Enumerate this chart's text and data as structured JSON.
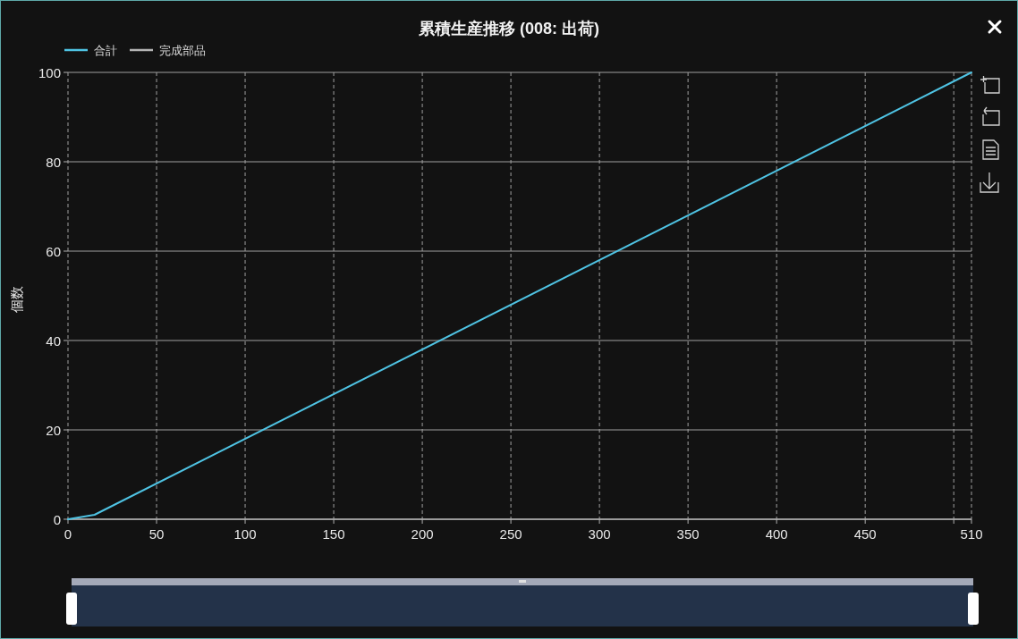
{
  "chart_data": {
    "type": "line",
    "title": "累積生産推移 (008: 出荷)",
    "ylabel": "個数",
    "x": [
      0,
      15,
      510
    ],
    "series": [
      {
        "name": "合計",
        "color": "#4fc3e3",
        "values": [
          0,
          1,
          100
        ]
      },
      {
        "name": "完成部品",
        "color": "#b4b4b4",
        "values": [
          null,
          null,
          null
        ]
      }
    ],
    "xlim": [
      0,
      510
    ],
    "xticks": [
      0,
      50,
      100,
      150,
      200,
      250,
      300,
      350,
      400,
      450,
      {
        "value": 500,
        "label": null
      },
      510
    ],
    "ylim": [
      0,
      100
    ],
    "yticks": [
      0,
      20,
      40,
      60,
      80,
      100
    ],
    "grid": true,
    "legend": "top left"
  }
}
